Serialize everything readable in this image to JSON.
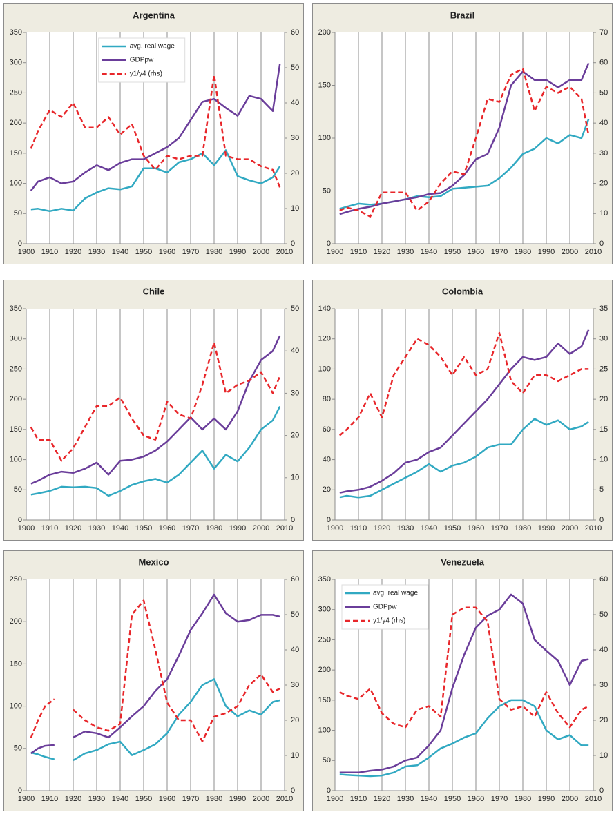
{
  "chart_data": [
    {
      "type": "line",
      "title": "Argentina",
      "x": [
        1902,
        1905,
        1910,
        1915,
        1920,
        1925,
        1930,
        1935,
        1940,
        1945,
        1950,
        1955,
        1960,
        1965,
        1970,
        1975,
        1980,
        1985,
        1990,
        1995,
        2000,
        2005,
        2008
      ],
      "xlim": [
        1900,
        2010
      ],
      "xticks": [
        1900,
        1910,
        1920,
        1930,
        1940,
        1950,
        1960,
        1970,
        1980,
        1990,
        2000,
        2010
      ],
      "ylim": [
        0,
        350
      ],
      "yticks": [
        0,
        50,
        100,
        150,
        200,
        250,
        300,
        350
      ],
      "y2lim": [
        0,
        60
      ],
      "y2ticks": [
        0,
        10,
        20,
        30,
        40,
        50,
        60
      ],
      "legend": "upper center",
      "grid": true,
      "series": [
        {
          "name": "avg. real wage",
          "color": "#31a9c2",
          "style": "solid",
          "values": [
            57,
            58,
            54,
            58,
            55,
            75,
            85,
            92,
            90,
            95,
            125,
            125,
            118,
            135,
            140,
            150,
            130,
            155,
            112,
            105,
            100,
            110,
            128
          ]
        },
        {
          "name": "GDPpw",
          "color": "#6a3d9a",
          "style": "solid",
          "values": [
            88,
            103,
            110,
            100,
            103,
            118,
            130,
            122,
            134,
            140,
            140,
            150,
            160,
            175,
            205,
            235,
            240,
            225,
            212,
            245,
            240,
            220,
            298
          ]
        },
        {
          "name": "y1/y4 (rhs)",
          "color": "#e8262a",
          "style": "dashed",
          "axis": "y2",
          "values": [
            27,
            32,
            38,
            36,
            40,
            33,
            33,
            36,
            31,
            34,
            25,
            21,
            25,
            24,
            25,
            25,
            48,
            25,
            24,
            24,
            22,
            21,
            16
          ]
        }
      ]
    },
    {
      "type": "line",
      "title": "Brazil",
      "x": [
        1902,
        1905,
        1910,
        1915,
        1920,
        1925,
        1930,
        1935,
        1940,
        1945,
        1950,
        1955,
        1960,
        1965,
        1970,
        1975,
        1980,
        1985,
        1990,
        1995,
        2000,
        2005,
        2008
      ],
      "xlim": [
        1900,
        2010
      ],
      "xticks": [
        1900,
        1910,
        1920,
        1930,
        1940,
        1950,
        1960,
        1970,
        1980,
        1990,
        2000,
        2010
      ],
      "ylim": [
        0,
        200
      ],
      "yticks": [
        0,
        50,
        100,
        150,
        200
      ],
      "y2lim": [
        0,
        70
      ],
      "y2ticks": [
        0,
        10,
        20,
        30,
        40,
        50,
        60,
        70
      ],
      "grid": true,
      "series": [
        {
          "color": "#31a9c2",
          "style": "solid",
          "values": [
            33,
            35,
            38,
            37,
            38,
            40,
            42,
            45,
            44,
            45,
            52,
            53,
            54,
            55,
            62,
            72,
            85,
            90,
            100,
            95,
            103,
            100,
            118
          ]
        },
        {
          "color": "#6a3d9a",
          "style": "solid",
          "values": [
            28,
            30,
            33,
            35,
            38,
            40,
            42,
            44,
            47,
            48,
            55,
            65,
            80,
            85,
            110,
            150,
            163,
            155,
            155,
            148,
            155,
            155,
            171
          ]
        },
        {
          "color": "#e8262a",
          "style": "dashed",
          "axis": "y2",
          "values": [
            11,
            12,
            11,
            9,
            17,
            17,
            17,
            11,
            14,
            20,
            24,
            23,
            35,
            48,
            47,
            56,
            58,
            44,
            52,
            50,
            52,
            48,
            36
          ]
        }
      ]
    },
    {
      "type": "line",
      "title": "Chile",
      "x": [
        1902,
        1905,
        1910,
        1915,
        1920,
        1925,
        1930,
        1935,
        1940,
        1945,
        1950,
        1955,
        1960,
        1965,
        1970,
        1975,
        1980,
        1985,
        1990,
        1995,
        2000,
        2005,
        2008
      ],
      "xlim": [
        1900,
        2010
      ],
      "xticks": [
        1900,
        1910,
        1920,
        1930,
        1940,
        1950,
        1960,
        1970,
        1980,
        1990,
        2000,
        2010
      ],
      "ylim": [
        0,
        350
      ],
      "yticks": [
        0,
        50,
        100,
        150,
        200,
        250,
        300,
        350
      ],
      "y2lim": [
        0,
        50
      ],
      "y2ticks": [
        0,
        10,
        20,
        30,
        40,
        50
      ],
      "grid": true,
      "series": [
        {
          "color": "#31a9c2",
          "style": "solid",
          "values": [
            42,
            44,
            48,
            55,
            54,
            55,
            53,
            40,
            48,
            58,
            64,
            68,
            62,
            75,
            95,
            115,
            85,
            108,
            97,
            120,
            150,
            165,
            188
          ]
        },
        {
          "color": "#6a3d9a",
          "style": "solid",
          "values": [
            60,
            65,
            75,
            80,
            78,
            85,
            95,
            75,
            98,
            100,
            105,
            115,
            130,
            150,
            170,
            150,
            168,
            150,
            180,
            230,
            265,
            280,
            305
          ]
        },
        {
          "color": "#e8262a",
          "style": "dashed",
          "axis": "y2",
          "values": [
            22,
            19,
            19,
            14,
            17,
            22,
            27,
            27,
            29,
            24,
            20,
            19,
            28,
            25,
            24,
            32,
            42,
            30,
            32,
            33,
            35,
            30,
            34
          ]
        }
      ]
    },
    {
      "type": "line",
      "title": "Colombia",
      "x": [
        1902,
        1905,
        1910,
        1915,
        1920,
        1925,
        1930,
        1935,
        1940,
        1945,
        1950,
        1955,
        1960,
        1965,
        1970,
        1975,
        1980,
        1985,
        1990,
        1995,
        2000,
        2005,
        2008
      ],
      "xlim": [
        1900,
        2010
      ],
      "xticks": [
        1900,
        1910,
        1920,
        1930,
        1940,
        1950,
        1960,
        1970,
        1980,
        1990,
        2000,
        2010
      ],
      "ylim": [
        0,
        140
      ],
      "yticks": [
        0,
        20,
        40,
        60,
        80,
        100,
        120,
        140
      ],
      "y2lim": [
        0,
        35
      ],
      "y2ticks": [
        0,
        5,
        10,
        15,
        20,
        25,
        30,
        35
      ],
      "grid": true,
      "series": [
        {
          "color": "#31a9c2",
          "style": "solid",
          "values": [
            15,
            16,
            15,
            16,
            20,
            24,
            28,
            32,
            37,
            32,
            36,
            38,
            42,
            48,
            50,
            50,
            60,
            67,
            63,
            66,
            60,
            62,
            65
          ]
        },
        {
          "color": "#6a3d9a",
          "style": "solid",
          "values": [
            18,
            19,
            20,
            22,
            26,
            31,
            38,
            40,
            45,
            48,
            56,
            64,
            72,
            80,
            90,
            100,
            108,
            106,
            108,
            117,
            110,
            115,
            126
          ]
        },
        {
          "color": "#e8262a",
          "style": "dashed",
          "axis": "y2",
          "values": [
            14,
            15,
            17,
            21,
            17,
            24,
            27,
            30,
            29,
            27,
            24,
            27,
            24,
            25,
            31,
            23,
            21,
            24,
            24,
            23,
            24,
            25,
            25
          ]
        }
      ]
    },
    {
      "type": "line",
      "title": "Mexico",
      "x": [
        1902,
        1905,
        1908,
        1912,
        1915,
        1920,
        1925,
        1930,
        1935,
        1940,
        1945,
        1950,
        1955,
        1960,
        1965,
        1970,
        1975,
        1980,
        1985,
        1990,
        1995,
        2000,
        2005,
        2008
      ],
      "xlim": [
        1900,
        2010
      ],
      "xticks": [
        1900,
        1910,
        1920,
        1930,
        1940,
        1950,
        1960,
        1970,
        1980,
        1990,
        2000,
        2010
      ],
      "ylim": [
        0,
        250
      ],
      "yticks": [
        0,
        50,
        100,
        150,
        200,
        250
      ],
      "y2lim": [
        0,
        60
      ],
      "y2ticks": [
        0,
        10,
        20,
        30,
        40,
        50,
        60
      ],
      "grid": true,
      "series": [
        {
          "color": "#31a9c2",
          "style": "solid",
          "values": [
            45,
            43,
            40,
            37,
            null,
            36,
            44,
            48,
            55,
            58,
            42,
            48,
            55,
            68,
            90,
            105,
            125,
            132,
            100,
            88,
            95,
            90,
            105,
            107
          ]
        },
        {
          "color": "#6a3d9a",
          "style": "solid",
          "values": [
            44,
            50,
            53,
            54,
            null,
            63,
            70,
            68,
            63,
            75,
            88,
            100,
            118,
            132,
            160,
            190,
            210,
            232,
            210,
            200,
            202,
            208,
            208,
            206
          ]
        },
        {
          "color": "#e8262a",
          "style": "dashed",
          "axis": "y2",
          "values": [
            15,
            20,
            24,
            26,
            null,
            23,
            20,
            18,
            17,
            19,
            50,
            54,
            40,
            25,
            20,
            20,
            14,
            21,
            22,
            24,
            30,
            33,
            28,
            29
          ]
        }
      ]
    },
    {
      "type": "line",
      "title": "Venezuela",
      "x": [
        1902,
        1905,
        1910,
        1915,
        1920,
        1925,
        1930,
        1935,
        1940,
        1945,
        1950,
        1955,
        1960,
        1965,
        1970,
        1975,
        1980,
        1985,
        1990,
        1995,
        2000,
        2005,
        2008
      ],
      "xlim": [
        1900,
        2010
      ],
      "xticks": [
        1900,
        1910,
        1920,
        1930,
        1940,
        1950,
        1960,
        1970,
        1980,
        1990,
        2000,
        2010
      ],
      "ylim": [
        0,
        350
      ],
      "yticks": [
        0,
        50,
        100,
        150,
        200,
        250,
        300,
        350
      ],
      "y2lim": [
        0,
        60
      ],
      "y2ticks": [
        0,
        10,
        20,
        30,
        40,
        50,
        60
      ],
      "legend": "upper left",
      "grid": true,
      "series": [
        {
          "name": "avg. real wage",
          "color": "#31a9c2",
          "style": "solid",
          "values": [
            27,
            26,
            25,
            24,
            25,
            30,
            40,
            42,
            55,
            70,
            78,
            88,
            95,
            120,
            140,
            150,
            150,
            140,
            100,
            85,
            92,
            75,
            75
          ]
        },
        {
          "name": "GDPpw",
          "color": "#6a3d9a",
          "style": "solid",
          "values": [
            30,
            30,
            30,
            33,
            35,
            40,
            50,
            55,
            75,
            100,
            170,
            225,
            270,
            290,
            300,
            325,
            310,
            250,
            232,
            215,
            175,
            215,
            218
          ]
        },
        {
          "name": "y1/y4 (rhs)",
          "color": "#e8262a",
          "style": "dashed",
          "axis": "y2",
          "values": [
            28,
            27,
            26,
            29,
            22,
            19,
            18,
            23,
            24,
            21,
            50,
            52,
            52,
            48,
            26,
            23,
            24,
            21,
            28,
            22,
            18,
            23,
            24
          ]
        }
      ]
    }
  ]
}
